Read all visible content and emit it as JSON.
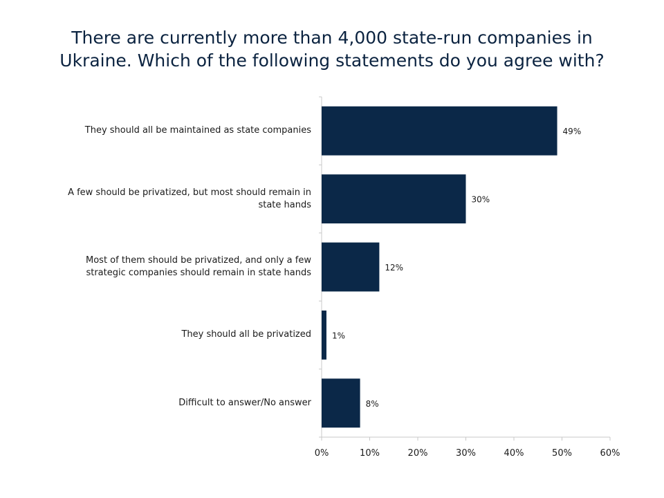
{
  "title_lines": [
    "There are currently more than 4,000 state-run companies in",
    "Ukraine. Which of the following statements do you agree with?"
  ],
  "chart_data": {
    "type": "bar",
    "orientation": "horizontal",
    "title": "There are currently more than 4,000 state-run companies in Ukraine. Which of the following statements do you agree with?",
    "categories": [
      [
        "They should all be maintained as state companies"
      ],
      [
        "A few should be privatized, but most should remain in",
        "state hands"
      ],
      [
        "Most of them should be privatized, and only a few",
        "strategic companies should remain in state hands"
      ],
      [
        "They should all be privatized"
      ],
      [
        "Difficult to answer/No answer"
      ]
    ],
    "values": [
      49,
      30,
      12,
      1,
      8
    ],
    "data_labels": [
      "49%",
      "30%",
      "12%",
      "1%",
      "8%"
    ],
    "xlim": [
      0,
      60
    ],
    "xticks": [
      0,
      10,
      20,
      30,
      40,
      50,
      60
    ],
    "xtick_labels": [
      "0%",
      "10%",
      "20%",
      "30%",
      "40%",
      "50%",
      "60%"
    ],
    "grid": false,
    "legend": "none",
    "bar_color": "#0b2848",
    "axis_color": "#c8c8c8"
  }
}
